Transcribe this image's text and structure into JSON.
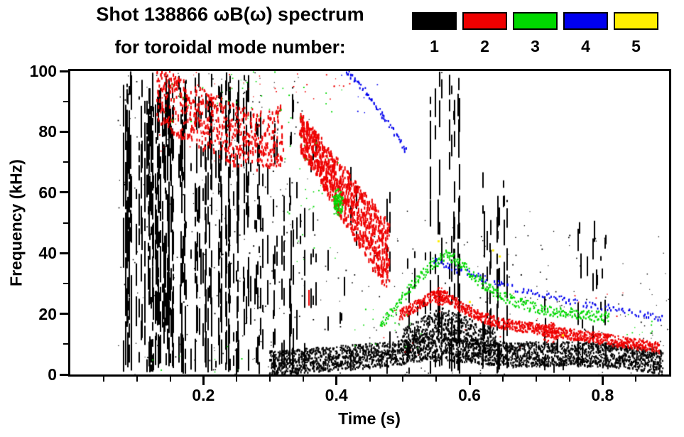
{
  "chart_data": {
    "type": "scatter",
    "title": "Shot 138866 ωB(ω) spectrum",
    "subtitle": "for toroidal mode number:",
    "xlabel": "Time (s)",
    "ylabel": "Frequency (kHz)",
    "xlim": [
      0.0,
      0.9
    ],
    "ylim": [
      0,
      100
    ],
    "xticks": [
      0.2,
      0.4,
      0.6,
      0.8
    ],
    "xtick_labels": [
      "0.2",
      "0.4",
      "0.6",
      "0.8"
    ],
    "yticks": [
      0,
      20,
      40,
      60,
      80,
      100
    ],
    "ytick_labels": [
      "0",
      "20",
      "40",
      "60",
      "80",
      "100"
    ],
    "x_minor_step": 0.05,
    "y_minor_step": 10,
    "grid": false,
    "legend_position": "top-right",
    "legend": [
      {
        "label": "1",
        "name": "n=1",
        "color": "#000000"
      },
      {
        "label": "2",
        "name": "n=2",
        "color": "#ee0000"
      },
      {
        "label": "3",
        "name": "n=3",
        "color": "#00d800"
      },
      {
        "label": "4",
        "name": "n=4",
        "color": "#0000ee"
      },
      {
        "label": "5",
        "name": "n=5",
        "color": "#ffee00"
      }
    ],
    "draw_order": [
      0,
      1,
      3,
      2,
      4
    ],
    "series": [
      {
        "name": "n=1",
        "color": "#000000",
        "features": [
          {
            "kind": "columns",
            "t": [
              0.075,
              0.17
            ],
            "f": [
              0,
              100
            ],
            "n": 60,
            "fill": 0.55,
            "seg": [
              2,
              12
            ],
            "gap": [
              0.5,
              4
            ],
            "topvar": 12,
            "w": 2
          },
          {
            "kind": "columns",
            "t": [
              0.17,
              0.27
            ],
            "f": [
              0,
              100
            ],
            "n": 48,
            "fill": 0.5,
            "seg": [
              2,
              12
            ],
            "gap": [
              0.5,
              5
            ],
            "topvar": 10,
            "w": 2
          },
          {
            "kind": "columns",
            "t": [
              0.27,
              0.36
            ],
            "f": [
              0,
              96
            ],
            "n": 26,
            "fill": 0.42,
            "seg": [
              2,
              10
            ],
            "gap": [
              1,
              6
            ],
            "topvar": 35,
            "w": 2
          },
          {
            "kind": "columns",
            "t": [
              0.36,
              0.43
            ],
            "f": [
              0,
              88
            ],
            "n": 9,
            "fill": 0.3,
            "seg": [
              2,
              8
            ],
            "gap": [
              2,
              8
            ],
            "topvar": 50,
            "w": 2
          },
          {
            "kind": "columns",
            "t": [
              0.46,
              0.49
            ],
            "f": [
              0,
              90
            ],
            "n": 3,
            "fill": 0.25,
            "seg": [
              2,
              8
            ],
            "gap": [
              2,
              9
            ],
            "topvar": 40,
            "w": 2
          },
          {
            "kind": "columns",
            "t": [
              0.5,
              0.54
            ],
            "f": [
              0,
              45
            ],
            "n": 7,
            "fill": 0.3,
            "seg": [
              2,
              7
            ],
            "gap": [
              2,
              7
            ],
            "topvar": 20,
            "w": 2
          },
          {
            "kind": "columns",
            "t": [
              0.54,
              0.585
            ],
            "f": [
              0,
              100
            ],
            "n": 14,
            "fill": 0.52,
            "seg": [
              2,
              12
            ],
            "gap": [
              1,
              5
            ],
            "topvar": 6,
            "w": 2
          },
          {
            "kind": "columns",
            "t": [
              0.61,
              0.66
            ],
            "f": [
              0,
              68
            ],
            "n": 18,
            "fill": 0.38,
            "seg": [
              2,
              9
            ],
            "gap": [
              1,
              6
            ],
            "topvar": 22,
            "w": 2
          },
          {
            "kind": "columns",
            "t": [
              0.7,
              0.745
            ],
            "f": [
              0,
              32
            ],
            "n": 7,
            "fill": 0.3,
            "seg": [
              2,
              7
            ],
            "gap": [
              2,
              7
            ],
            "topvar": 15,
            "w": 2
          },
          {
            "kind": "columns",
            "t": [
              0.755,
              0.81
            ],
            "f": [
              0,
              66
            ],
            "n": 14,
            "fill": 0.34,
            "seg": [
              2,
              9
            ],
            "gap": [
              1,
              6
            ],
            "topvar": 28,
            "w": 2
          },
          {
            "kind": "columns",
            "t": [
              0.82,
              0.885
            ],
            "f": [
              0,
              22
            ],
            "n": 7,
            "fill": 0.3,
            "seg": [
              2,
              7
            ],
            "gap": [
              2,
              7
            ],
            "topvar": 10,
            "w": 2
          },
          {
            "kind": "track",
            "pts": [
              [
                0.3,
                4
              ],
              [
                0.36,
                5
              ],
              [
                0.42,
                6
              ],
              [
                0.48,
                7
              ],
              [
                0.54,
                9
              ],
              [
                0.6,
                8
              ],
              [
                0.66,
                7
              ],
              [
                0.72,
                7
              ],
              [
                0.78,
                7
              ],
              [
                0.84,
                6
              ],
              [
                0.89,
                4
              ]
            ],
            "width": 8,
            "density": 9,
            "dash": [
              2,
              4
            ],
            "w": 2
          },
          {
            "kind": "track",
            "pts": [
              [
                0.5,
                11
              ],
              [
                0.53,
                15
              ],
              [
                0.555,
                18
              ],
              [
                0.58,
                16
              ],
              [
                0.61,
                13
              ],
              [
                0.64,
                11
              ]
            ],
            "width": 9,
            "density": 7,
            "dash": [
              2,
              4
            ],
            "w": 2
          },
          {
            "kind": "scatter",
            "t": [
              0.07,
              0.36
            ],
            "f": [
              0,
              100
            ],
            "n": 220,
            "size": 2
          },
          {
            "kind": "scatter",
            "t": [
              0.36,
              0.9
            ],
            "f": [
              0,
              55
            ],
            "n": 140,
            "size": 2
          },
          {
            "kind": "scatter",
            "t": [
              0.4,
              0.9
            ],
            "f": [
              0,
              28
            ],
            "n": 90,
            "size": 2
          }
        ]
      },
      {
        "name": "n=2",
        "color": "#ee0000",
        "features": [
          {
            "kind": "track",
            "pts": [
              [
                0.13,
                93
              ],
              [
                0.17,
                88
              ],
              [
                0.21,
                83
              ],
              [
                0.25,
                79
              ],
              [
                0.29,
                77
              ],
              [
                0.32,
                80
              ]
            ],
            "width": 20,
            "density": 6,
            "dash": [
              3,
              6
            ],
            "w": 2
          },
          {
            "kind": "scatter",
            "t": [
              0.12,
              0.31
            ],
            "f": [
              70,
              100
            ],
            "n": 60,
            "size": 2
          },
          {
            "kind": "scatter",
            "t": [
              0.33,
              0.43
            ],
            "f": [
              90,
              100
            ],
            "n": 14,
            "size": 2
          },
          {
            "kind": "track",
            "pts": [
              [
                0.345,
                80
              ],
              [
                0.37,
                73
              ],
              [
                0.39,
                66
              ],
              [
                0.41,
                60
              ],
              [
                0.43,
                54
              ],
              [
                0.45,
                48
              ],
              [
                0.465,
                43
              ],
              [
                0.478,
                40
              ]
            ],
            "width": 13,
            "width2": 24,
            "density": 14,
            "dash": [
              3,
              7
            ],
            "w": 2
          },
          {
            "kind": "columns",
            "t": [
              0.34,
              0.37
            ],
            "f": [
              8,
              32
            ],
            "n": 4,
            "fill": 0.35,
            "seg": [
              2,
              6
            ],
            "gap": [
              2,
              6
            ],
            "topvar": 8,
            "w": 2
          },
          {
            "kind": "track",
            "pts": [
              [
                0.495,
                20
              ],
              [
                0.52,
                23
              ],
              [
                0.545,
                26
              ],
              [
                0.565,
                26
              ],
              [
                0.59,
                22
              ],
              [
                0.62,
                19
              ],
              [
                0.65,
                17
              ],
              [
                0.68,
                16
              ],
              [
                0.71,
                15
              ],
              [
                0.74,
                14
              ],
              [
                0.77,
                13
              ],
              [
                0.8,
                12
              ],
              [
                0.83,
                11
              ],
              [
                0.86,
                10
              ],
              [
                0.885,
                9
              ]
            ],
            "width": 3.5,
            "density": 5,
            "dash": [
              2,
              4
            ],
            "w": 2
          },
          {
            "kind": "blob",
            "t": 0.555,
            "f": 26,
            "rt": 0.01,
            "rf": 3,
            "n": 90
          },
          {
            "kind": "blob",
            "t": 0.72,
            "f": 14,
            "rt": 0.012,
            "rf": 3.5,
            "n": 130
          },
          {
            "kind": "scatter",
            "t": [
              0.45,
              0.9
            ],
            "f": [
              5,
              30
            ],
            "n": 25,
            "size": 2
          }
        ]
      },
      {
        "name": "n=3",
        "color": "#00d800",
        "features": [
          {
            "kind": "scatter",
            "t": [
              0.12,
              0.33
            ],
            "f": [
              83,
              100
            ],
            "n": 45,
            "size": 2
          },
          {
            "kind": "scatter",
            "t": [
              0.32,
              0.41
            ],
            "f": [
              35,
              96
            ],
            "n": 38,
            "size": 2
          },
          {
            "kind": "blob",
            "t": 0.402,
            "f": 57,
            "rt": 0.007,
            "rf": 4.5,
            "n": 150
          },
          {
            "kind": "track",
            "pts": [
              [
                0.465,
                17
              ],
              [
                0.49,
                23
              ],
              [
                0.515,
                30
              ],
              [
                0.54,
                36
              ],
              [
                0.565,
                40
              ],
              [
                0.59,
                36
              ],
              [
                0.615,
                31
              ],
              [
                0.64,
                27
              ],
              [
                0.67,
                24
              ],
              [
                0.7,
                22
              ],
              [
                0.73,
                21
              ],
              [
                0.77,
                20
              ],
              [
                0.81,
                19
              ]
            ],
            "width": 3.5,
            "density": 2.5,
            "dash": [
              2,
              3
            ],
            "w": 2
          },
          {
            "kind": "scatter",
            "t": [
              0.42,
              0.53
            ],
            "f": [
              8,
              22
            ],
            "n": 18,
            "size": 2
          },
          {
            "kind": "scatter",
            "t": [
              0.8,
              0.88
            ],
            "f": [
              13,
              21
            ],
            "n": 10,
            "size": 2
          },
          {
            "kind": "scatter",
            "t": [
              0.12,
              0.28
            ],
            "f": [
              0,
              10
            ],
            "n": 8,
            "size": 2
          }
        ]
      },
      {
        "name": "n=4",
        "color": "#0000ee",
        "features": [
          {
            "kind": "track",
            "pts": [
              [
                0.415,
                100
              ],
              [
                0.44,
                94
              ],
              [
                0.465,
                87
              ],
              [
                0.49,
                79
              ],
              [
                0.505,
                74
              ]
            ],
            "width": 2,
            "density": 1.4,
            "dash": [
              2,
              4
            ],
            "w": 2
          },
          {
            "kind": "track",
            "pts": [
              [
                0.545,
                38
              ],
              [
                0.58,
                35
              ],
              [
                0.62,
                32
              ],
              [
                0.66,
                29
              ],
              [
                0.7,
                27
              ],
              [
                0.74,
                25
              ],
              [
                0.78,
                23
              ],
              [
                0.82,
                22
              ],
              [
                0.86,
                20
              ],
              [
                0.89,
                19
              ]
            ],
            "width": 2,
            "density": 0.7,
            "dash": [
              2,
              4
            ],
            "w": 2
          },
          {
            "kind": "scatter",
            "t": [
              0.4,
              0.5
            ],
            "f": [
              85,
              100
            ],
            "n": 6,
            "size": 2
          }
        ]
      },
      {
        "name": "n=5",
        "color": "#ffee00",
        "features": [
          {
            "kind": "points",
            "pts": [
              [
                0.553,
                44,
                3
              ],
              [
                0.635,
                41,
                3
              ],
              [
                0.645,
                39,
                3
              ],
              [
                0.74,
                13,
                3
              ],
              [
                0.6,
                24,
                3
              ]
            ]
          }
        ]
      }
    ]
  }
}
